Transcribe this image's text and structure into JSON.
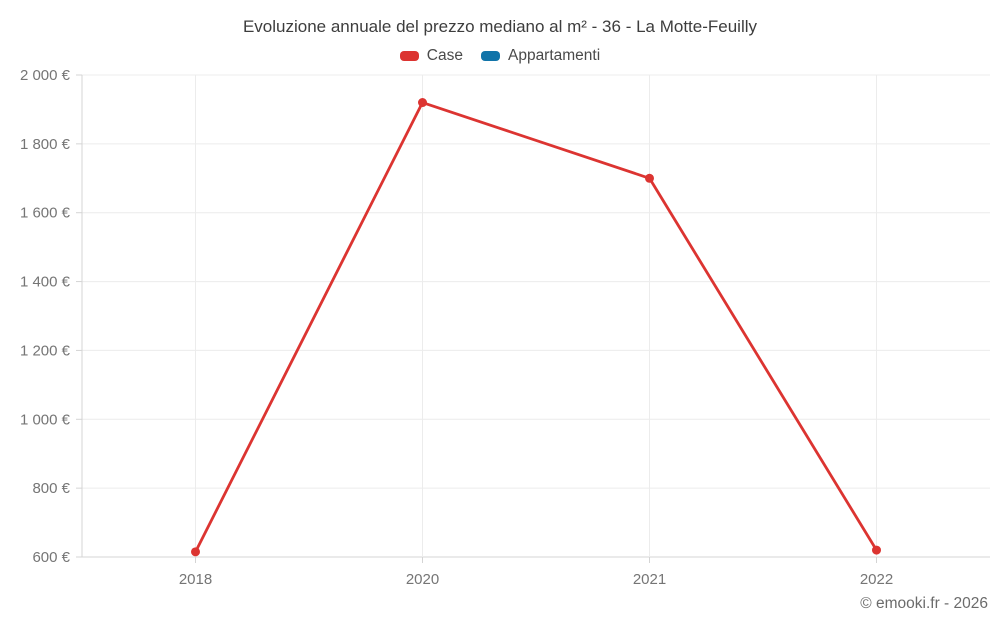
{
  "title": "Evoluzione annuale del prezzo mediano al m² - 36 - La Motte-Feuilly",
  "legend": [
    {
      "label": "Case",
      "color": "#dc3431"
    },
    {
      "label": "Appartamenti",
      "color": "#1174a9"
    }
  ],
  "footer": "© emooki.fr - 2026",
  "colors": {
    "series_case": "#dc3431",
    "series_appartamenti": "#1174a9",
    "gridline": "#ececec",
    "axis": "#d4d4d4",
    "label": "#757575"
  },
  "chart_data": {
    "type": "line",
    "title": "Evoluzione annuale del prezzo mediano al m² - 36 - La Motte-Feuilly",
    "categories": [
      "2018",
      "2020",
      "2021",
      "2022"
    ],
    "series": [
      {
        "name": "Case",
        "color": "#dc3431",
        "values": [
          615,
          1920,
          1700,
          620
        ]
      },
      {
        "name": "Appartamenti",
        "color": "#1174a9",
        "values": []
      }
    ],
    "xlabel": "",
    "ylabel": "",
    "ylim": [
      600,
      2000
    ],
    "ytick_step": 200,
    "ytick_labels": [
      "600 €",
      "800 €",
      "1 000 €",
      "1 200 €",
      "1 400 €",
      "1 600 €",
      "1 800 €",
      "2 000 €"
    ],
    "grid": true,
    "legend_position": "top",
    "unit": "€"
  }
}
